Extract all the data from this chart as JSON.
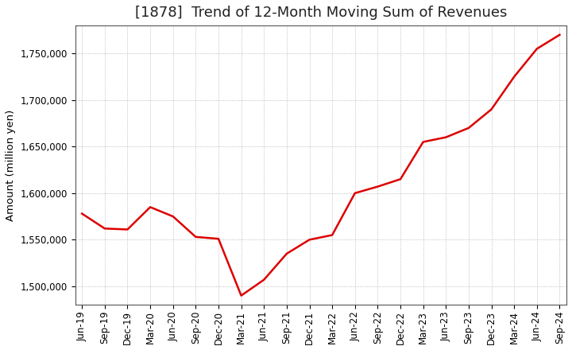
{
  "title": "[1878]  Trend of 12-Month Moving Sum of Revenues",
  "ylabel": "Amount (million yen)",
  "line_color": "#dd0000",
  "line_width": 1.8,
  "background_color": "#ffffff",
  "grid_color": "#999999",
  "x_labels": [
    "Jun-19",
    "Sep-19",
    "Dec-19",
    "Mar-20",
    "Jun-20",
    "Sep-20",
    "Dec-20",
    "Mar-21",
    "Jun-21",
    "Sep-21",
    "Dec-21",
    "Mar-22",
    "Jun-22",
    "Sep-22",
    "Dec-22",
    "Mar-23",
    "Jun-23",
    "Sep-23",
    "Dec-23",
    "Mar-24",
    "Jun-24",
    "Sep-24"
  ],
  "values": [
    1578000,
    1562000,
    1561000,
    1585000,
    1575000,
    1553000,
    1551000,
    1490000,
    1507000,
    1535000,
    1550000,
    1555000,
    1600000,
    1607000,
    1615000,
    1655000,
    1660000,
    1670000,
    1690000,
    1725000,
    1755000,
    1770000
  ],
  "ylim": [
    1480000,
    1780000
  ],
  "yticks": [
    1500000,
    1550000,
    1600000,
    1650000,
    1700000,
    1750000
  ],
  "title_fontsize": 13,
  "tick_fontsize": 8.5,
  "ylabel_fontsize": 9.5
}
